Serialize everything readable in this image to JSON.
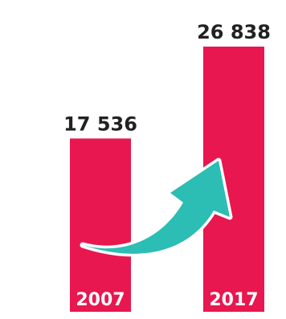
{
  "chart_data": {
    "type": "bar",
    "categories": [
      "2007",
      "2017"
    ],
    "values": [
      17536,
      26838
    ],
    "value_labels": [
      "17 536",
      "26 838"
    ],
    "title": "",
    "xlabel": "",
    "ylabel": "",
    "ylim": [
      0,
      26838
    ],
    "grid": false,
    "legend": "none"
  },
  "colors": {
    "bar": "#E8174F",
    "arrow": "#2CBDB5",
    "value_text": "#222222",
    "year_text": "#FFFFFF",
    "background": "#FFFFFF"
  },
  "icons": {
    "growth_arrow": "growth-arrow-icon"
  }
}
